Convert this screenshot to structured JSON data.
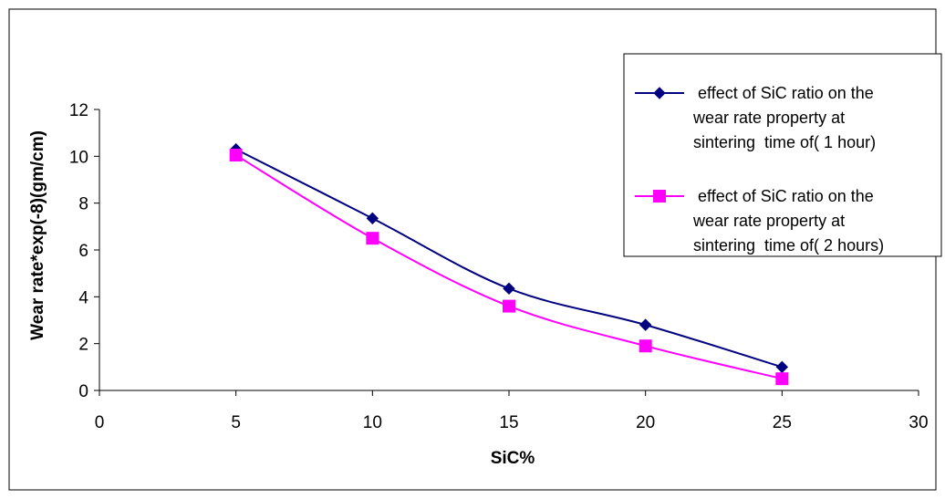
{
  "chart_data": {
    "type": "line",
    "title": "",
    "xlabel": "SiC%",
    "ylabel": "Wear rate*exp(-8)(gm/cm)",
    "xlim": [
      0,
      30
    ],
    "ylim": [
      0,
      12
    ],
    "xticks": [
      0,
      5,
      10,
      15,
      20,
      25,
      30
    ],
    "yticks": [
      0,
      2,
      4,
      6,
      8,
      10,
      12
    ],
    "grid": false,
    "legend_position": "top-right",
    "series": [
      {
        "name_lines": [
          "effect of SiC ratio on the",
          "wear rate property at",
          "sintering  time of( 1 hour)"
        ],
        "x": [
          5,
          10,
          15,
          20,
          25
        ],
        "y": [
          10.3,
          7.35,
          4.35,
          2.8,
          1.0
        ],
        "color": "#000080",
        "marker": "diamond"
      },
      {
        "name_lines": [
          "effect of SiC ratio on the",
          "wear rate property at",
          "sintering  time of( 2 hours)"
        ],
        "x": [
          5,
          10,
          15,
          20,
          25
        ],
        "y": [
          10.05,
          6.5,
          3.6,
          1.9,
          0.5
        ],
        "color": "#FF00FF",
        "marker": "square"
      }
    ]
  }
}
